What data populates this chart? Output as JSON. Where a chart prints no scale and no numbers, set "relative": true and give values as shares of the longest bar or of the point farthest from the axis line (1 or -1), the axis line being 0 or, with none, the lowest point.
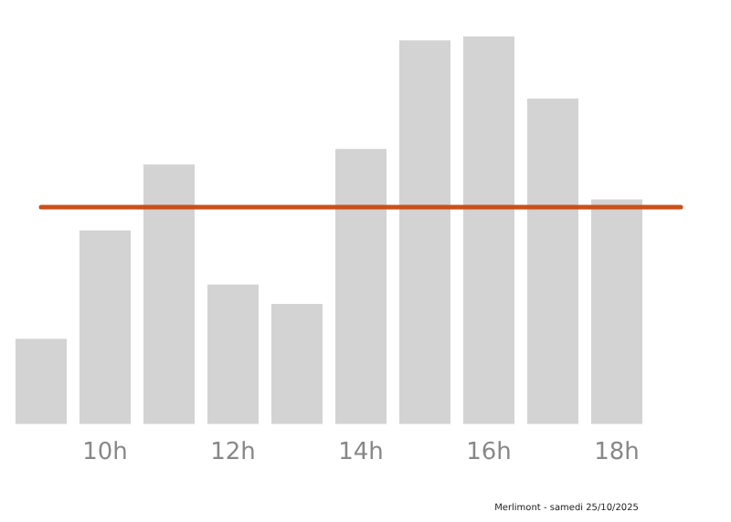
{
  "chart_data": {
    "type": "bar",
    "relative": true,
    "categories": [
      null,
      "10h",
      null,
      "12h",
      null,
      "14h",
      null,
      "16h",
      null,
      "18h",
      null
    ],
    "values": [
      0.22,
      0.5,
      0.67,
      0.36,
      0.31,
      0.71,
      0.99,
      1,
      0.84,
      0.58,
      0
    ],
    "color": "#d3d3d3",
    "grid": false,
    "legend": false,
    "ref_lines": [
      {
        "axis": "y",
        "value": 0.56,
        "color": "#c8501e"
      }
    ],
    "annotations": [
      "Merlimont - samedi 25/10/2025"
    ]
  }
}
